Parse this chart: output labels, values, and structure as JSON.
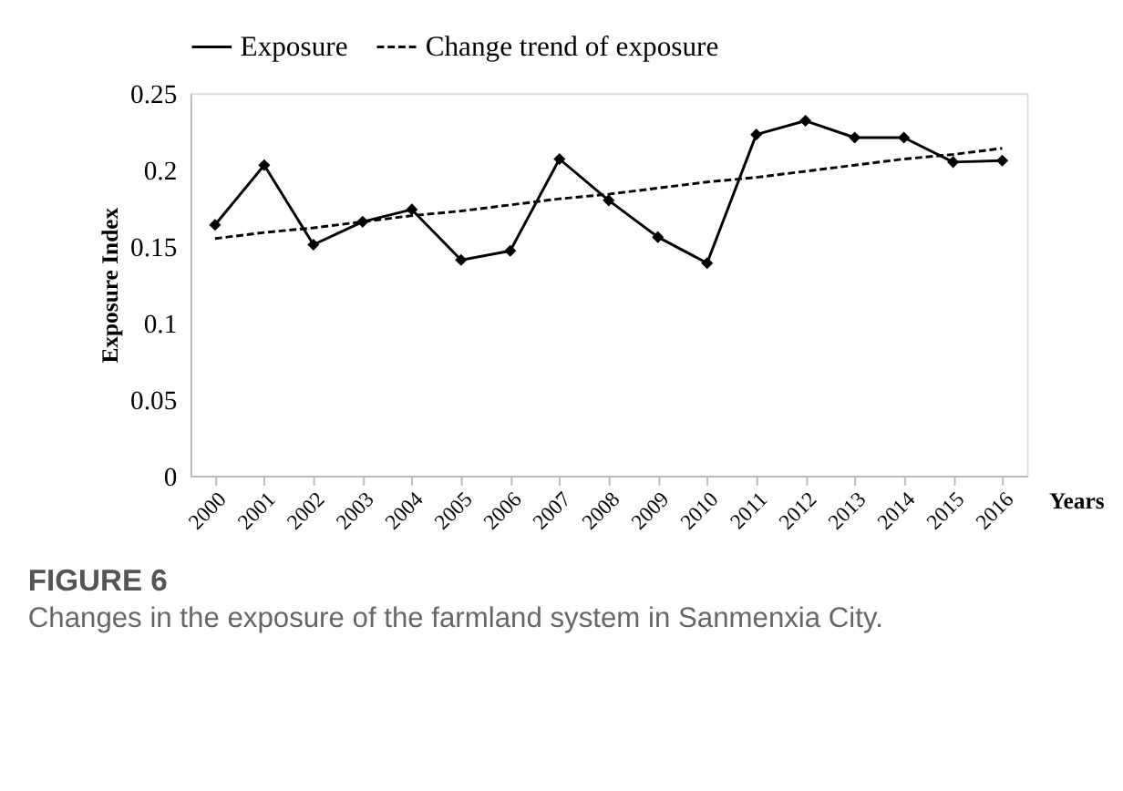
{
  "chart_data": {
    "type": "line",
    "title": "FIGURE 6",
    "subtitle": "Changes in the exposure of the farmland system in Sanmenxia City.",
    "xlabel": "Years",
    "ylabel": "Exposure Index",
    "categories": [
      "2000",
      "2001",
      "2002",
      "2003",
      "2004",
      "2005",
      "2006",
      "2007",
      "2008",
      "2009",
      "2010",
      "2011",
      "2012",
      "2013",
      "2014",
      "2015",
      "2016"
    ],
    "series": [
      {
        "name": "Exposure",
        "color": "#000000",
        "marker": "diamond",
        "line_style": "solid",
        "values": [
          0.164,
          0.203,
          0.151,
          0.166,
          0.174,
          0.141,
          0.147,
          0.207,
          0.18,
          0.156,
          0.139,
          0.223,
          0.232,
          0.221,
          0.221,
          0.205,
          0.206
        ]
      },
      {
        "name": "Change trend of exposure",
        "color": "#000000",
        "marker": "none",
        "line_style": "dashed",
        "values": [
          0.155,
          0.159,
          0.162,
          0.166,
          0.17,
          0.173,
          0.177,
          0.181,
          0.184,
          0.188,
          0.192,
          0.195,
          0.199,
          0.203,
          0.207,
          0.21,
          0.214
        ]
      }
    ],
    "ylim": [
      0,
      0.25
    ],
    "yticks": [
      0,
      0.05,
      0.1,
      0.15,
      0.2,
      0.25
    ],
    "grid": false,
    "legend": "top"
  }
}
